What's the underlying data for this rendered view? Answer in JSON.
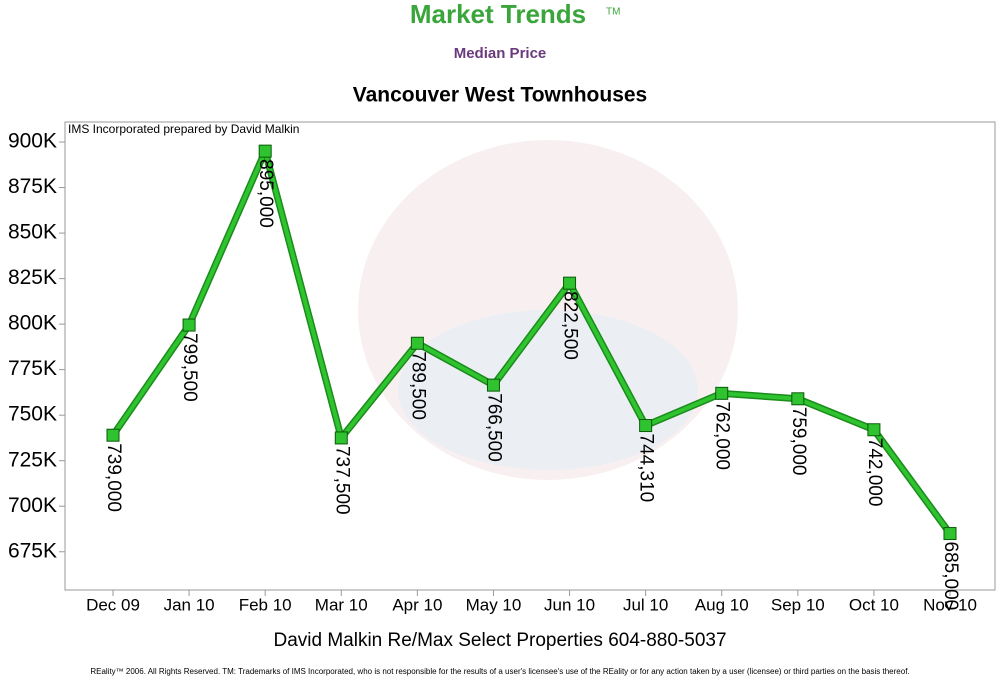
{
  "header": {
    "brand": "Market Trends",
    "trademark": "TM",
    "subtitle": "Median Price"
  },
  "chart_data": {
    "type": "line",
    "title": "Vancouver West Townhouses",
    "annotation": "IMS Incorporated prepared by David Malkin",
    "categories": [
      "Dec 09",
      "Jan 10",
      "Feb 10",
      "Mar 10",
      "Apr 10",
      "May 10",
      "Jun 10",
      "Jul 10",
      "Aug 10",
      "Sep 10",
      "Oct 10",
      "Nov 10"
    ],
    "values": [
      739000,
      799500,
      895000,
      737500,
      789500,
      766500,
      822500,
      744310,
      762000,
      759000,
      742000,
      685000
    ],
    "value_labels": [
      "739,000",
      "799,500",
      "895,000",
      "737,500",
      "789,500",
      "766,500",
      "822,500",
      "744,310",
      "762,000",
      "759,000",
      "742,000",
      "685,000"
    ],
    "color": "#2fc42f",
    "ylim": [
      654000,
      911000
    ],
    "yticks": [
      {
        "value": 675000,
        "label": "675K"
      },
      {
        "value": 700000,
        "label": "700K"
      },
      {
        "value": 725000,
        "label": "725K"
      },
      {
        "value": 750000,
        "label": "750K"
      },
      {
        "value": 775000,
        "label": "775K"
      },
      {
        "value": 800000,
        "label": "800K"
      },
      {
        "value": 825000,
        "label": "825K"
      },
      {
        "value": 850000,
        "label": "850K"
      },
      {
        "value": 875000,
        "label": "875K"
      },
      {
        "value": 900000,
        "label": "900K"
      }
    ]
  },
  "footer": {
    "contact": "David Malkin Re/Max Select Properties 604-880-5037",
    "disclaimer": "REality™ 2006. All Rights Reserved. TM: Trademarks of IMS Incorporated, who is not responsible for the results of a user's licensee's use of the REality  or for any action taken by a user (licensee) or third parties on the basis thereof."
  }
}
